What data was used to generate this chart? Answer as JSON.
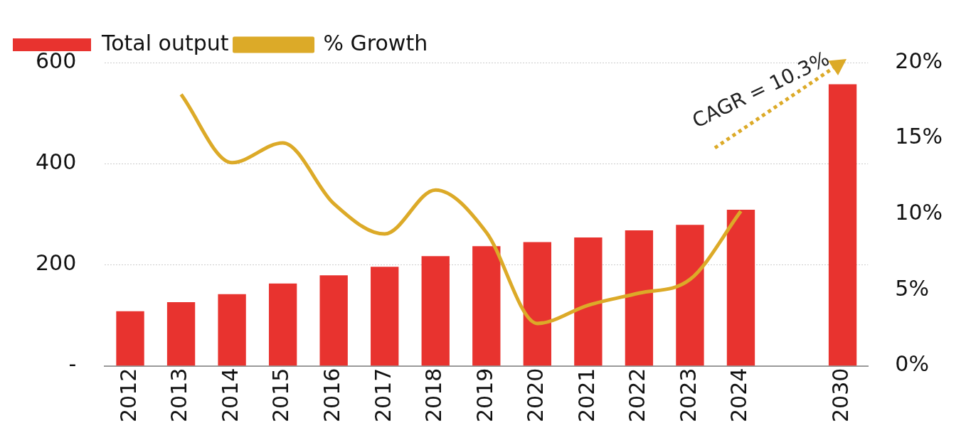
{
  "chart_data": {
    "type": "bar",
    "categories": [
      "2012",
      "2013",
      "2014",
      "2015",
      "2016",
      "2017",
      "2018",
      "2019",
      "2020",
      "2021",
      "2022",
      "2023",
      "2024",
      null,
      "2030"
    ],
    "series": [
      {
        "name": "Total output",
        "color": "#e8332f",
        "values": [
          108,
          126,
          142,
          163,
          179,
          196,
          217,
          237,
          245,
          254,
          268,
          279,
          309,
          null,
          557
        ]
      },
      {
        "name": "% Growth",
        "type": "line",
        "axis": "y2",
        "color": "#dcaa28",
        "values": [
          null,
          17.9,
          13.4,
          14.7,
          10.7,
          8.7,
          11.6,
          8.8,
          2.8,
          4.0,
          4.8,
          5.7,
          10.2,
          null,
          null
        ]
      }
    ],
    "ylim": [
      0,
      600
    ],
    "yticks": [
      {
        "value": 0,
        "label": "-"
      },
      200,
      400,
      600
    ],
    "y2lim": [
      0,
      20
    ],
    "y2ticks": [
      {
        "value": 0,
        "label": "0%"
      },
      {
        "value": 5,
        "label": "5%"
      },
      {
        "value": 10,
        "label": "10%"
      },
      {
        "value": 15,
        "label": "15%"
      },
      {
        "value": 20,
        "label": "20%"
      }
    ],
    "grid": "y",
    "legend": "top left",
    "marker": "none",
    "annotations": [
      "CAGR = 10.3%"
    ]
  }
}
